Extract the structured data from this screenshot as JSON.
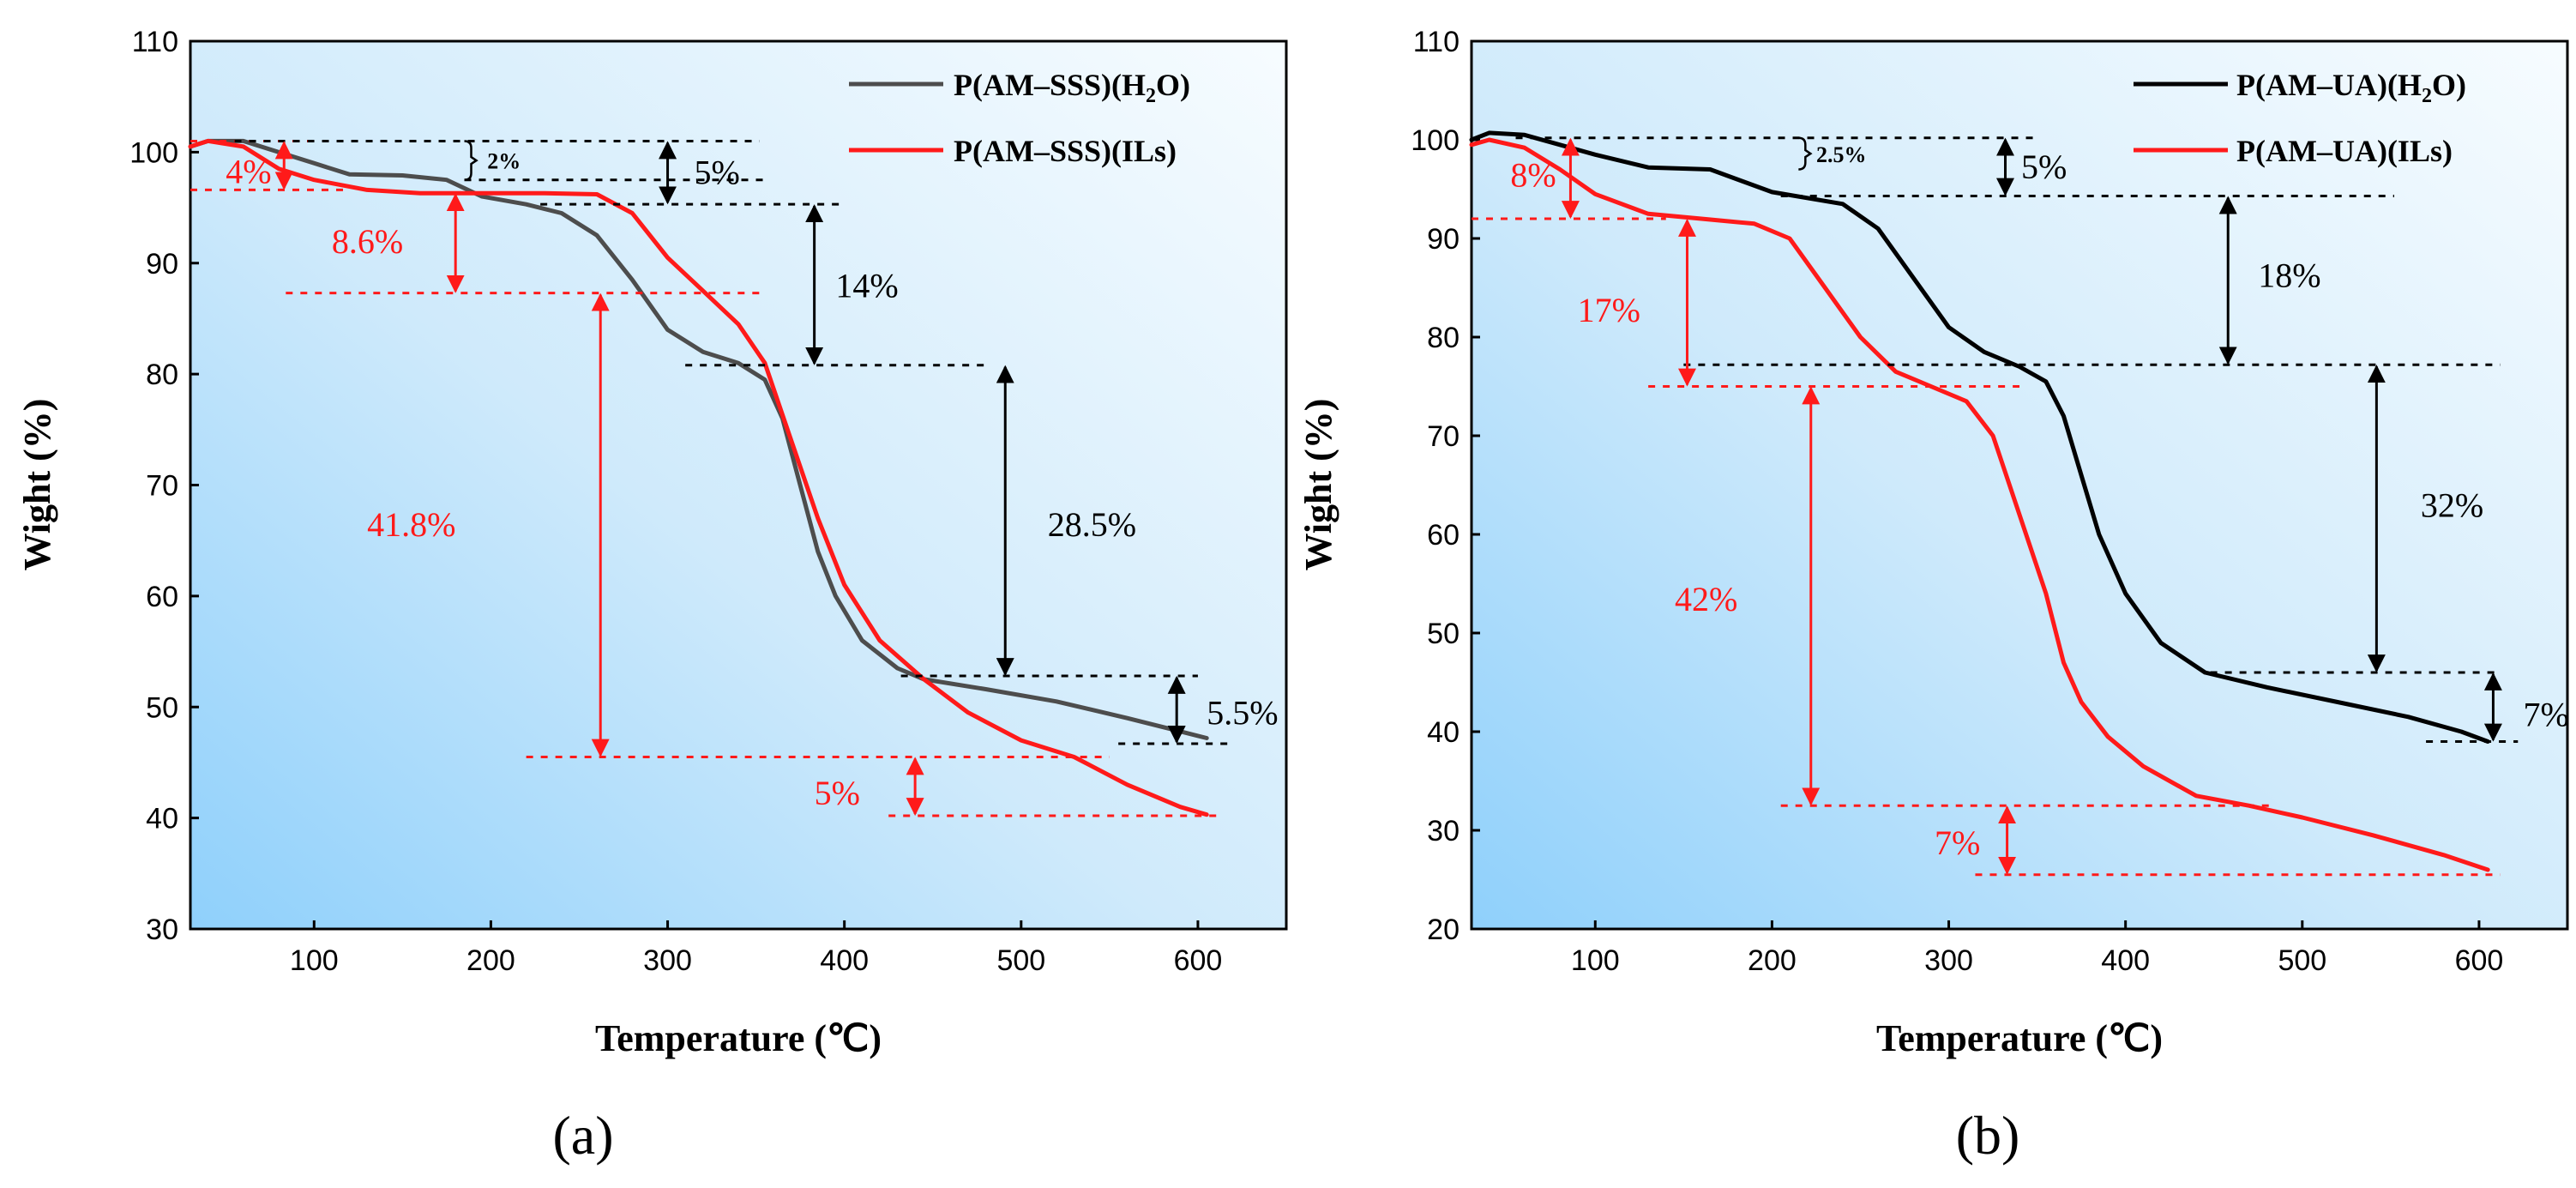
{
  "colors": {
    "black": "#000000",
    "red": "#ff1a1a",
    "dark_gray": "#4d4d4d"
  },
  "chart_data": [
    {
      "panel_label": "(a)",
      "type": "line",
      "xlabel": "Temperature (℃)",
      "ylabel": "Wight (%)",
      "xlim": [
        30,
        650
      ],
      "ylim": [
        30,
        110
      ],
      "xticks": [
        100,
        200,
        300,
        400,
        500,
        600
      ],
      "yticks": [
        30,
        40,
        50,
        60,
        70,
        80,
        90,
        100,
        110
      ],
      "legend_position": "top-right",
      "series": [
        {
          "name": "P(AM–SSS)(H₂O)",
          "color": "#4d4d4d",
          "x": [
            30,
            40,
            60,
            80,
            100,
            120,
            150,
            175,
            195,
            220,
            240,
            260,
            280,
            300,
            320,
            340,
            355,
            365,
            375,
            385,
            395,
            410,
            430,
            445,
            480,
            520,
            560,
            590,
            605
          ],
          "y": [
            100.5,
            101,
            101,
            100,
            99,
            98,
            97.9,
            97.5,
            96,
            95.3,
            94.5,
            92.5,
            88.5,
            84,
            82,
            81,
            79.5,
            76,
            70,
            64,
            60,
            56,
            53.5,
            52.5,
            51.6,
            50.5,
            49,
            47.8,
            47.2
          ]
        },
        {
          "name": "P(AM–SSS)(ILs)",
          "color": "#ff1a1a",
          "x": [
            30,
            40,
            60,
            80,
            100,
            130,
            160,
            200,
            230,
            260,
            280,
            300,
            320,
            340,
            355,
            370,
            385,
            400,
            420,
            445,
            470,
            500,
            530,
            560,
            590,
            605
          ],
          "y": [
            100.5,
            101,
            100.5,
            98.5,
            97.5,
            96.6,
            96.3,
            96.3,
            96.3,
            96.2,
            94.5,
            90.5,
            87.5,
            84.5,
            81,
            74,
            67,
            61,
            56,
            52.5,
            49.5,
            47,
            45.5,
            43,
            41,
            40.3
          ]
        }
      ],
      "annotations": [
        {
          "text": "4%",
          "color": "red"
        },
        {
          "text": "2%",
          "color": "black"
        },
        {
          "text": "5%",
          "color": "black"
        },
        {
          "text": "8.6%",
          "color": "red"
        },
        {
          "text": "14%",
          "color": "black"
        },
        {
          "text": "41.8%",
          "color": "red"
        },
        {
          "text": "28.5%",
          "color": "black"
        },
        {
          "text": "5.5%",
          "color": "black"
        },
        {
          "text": "5%",
          "color": "red"
        }
      ]
    },
    {
      "panel_label": "(b)",
      "type": "line",
      "xlabel": "Temperature (℃)",
      "ylabel": "Wight (%)",
      "xlim": [
        30,
        650
      ],
      "ylim": [
        20,
        110
      ],
      "xticks": [
        100,
        200,
        300,
        400,
        500,
        600
      ],
      "yticks": [
        20,
        30,
        40,
        50,
        60,
        70,
        80,
        90,
        100,
        110
      ],
      "legend_position": "top-right",
      "series": [
        {
          "name": "P(AM–UA)(H₂O)",
          "color": "#000000",
          "x": [
            30,
            40,
            60,
            80,
            100,
            130,
            165,
            200,
            240,
            260,
            280,
            300,
            320,
            340,
            355,
            365,
            375,
            385,
            400,
            420,
            445,
            480,
            520,
            560,
            590,
            605
          ],
          "y": [
            100,
            100.7,
            100.5,
            99.5,
            98.5,
            97.2,
            97,
            94.7,
            93.5,
            91,
            86,
            81,
            78.5,
            77,
            75.5,
            72,
            66,
            60,
            54,
            49,
            46,
            44.5,
            43,
            41.5,
            40,
            39
          ]
        },
        {
          "name": "P(AM–UA)(ILs)",
          "color": "#ff1a1a",
          "x": [
            30,
            40,
            60,
            80,
            100,
            130,
            160,
            190,
            210,
            230,
            250,
            270,
            290,
            310,
            325,
            340,
            355,
            365,
            375,
            390,
            410,
            440,
            470,
            500,
            540,
            580,
            605
          ],
          "y": [
            99.5,
            100,
            99.2,
            97,
            94.5,
            92.5,
            92,
            91.5,
            90,
            85,
            80,
            76.5,
            75,
            73.5,
            70,
            62,
            54,
            47,
            43,
            39.5,
            36.5,
            33.5,
            32.5,
            31.3,
            29.5,
            27.5,
            26
          ]
        }
      ],
      "annotations": [
        {
          "text": "8%",
          "color": "red"
        },
        {
          "text": "2.5%",
          "color": "black"
        },
        {
          "text": "5%",
          "color": "black"
        },
        {
          "text": "18%",
          "color": "black"
        },
        {
          "text": "17%",
          "color": "red"
        },
        {
          "text": "32%",
          "color": "black"
        },
        {
          "text": "42%",
          "color": "red"
        },
        {
          "text": "7%",
          "color": "black"
        },
        {
          "text": "7%",
          "color": "red"
        }
      ]
    }
  ]
}
